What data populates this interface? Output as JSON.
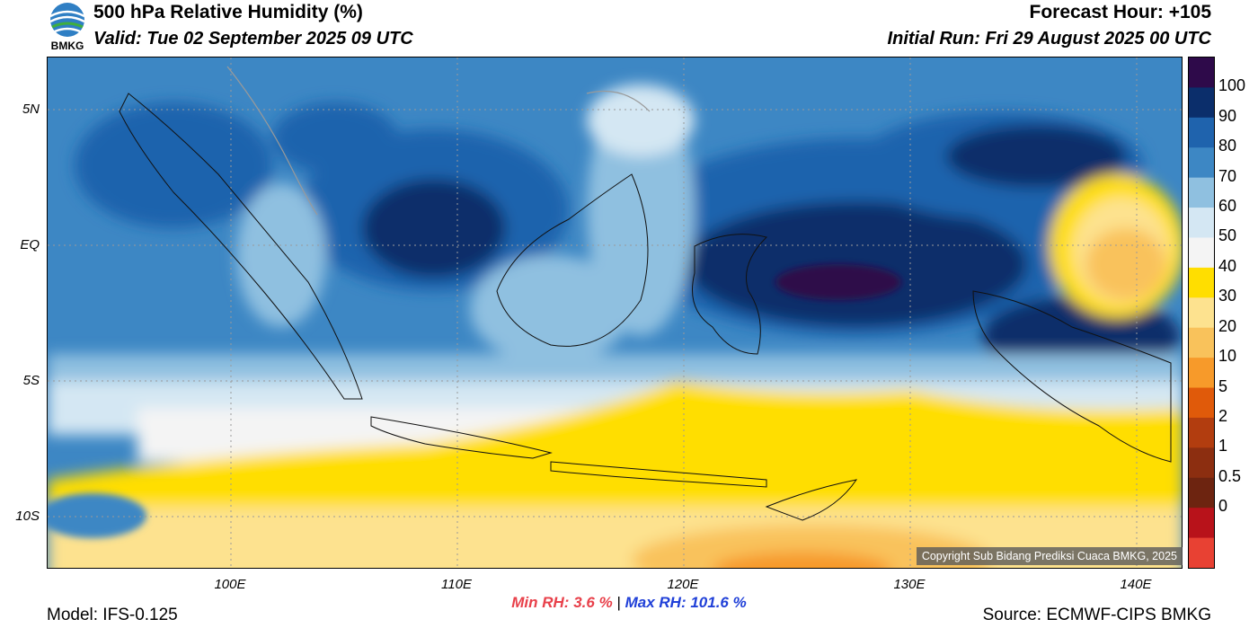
{
  "header": {
    "title": "500 hPa Relative Humidity (%)",
    "valid": "Valid: Tue 02 September 2025 09 UTC",
    "forecast_hour": "Forecast Hour: +105",
    "initial_run": "Initial Run: Fri 29 August 2025 00 UTC"
  },
  "logo": {
    "text": "BMKG",
    "icon": "bmkg-logo-icon"
  },
  "axes": {
    "lat_labels": [
      "5N",
      "EQ",
      "5S",
      "10S"
    ],
    "lon_labels": [
      "100E",
      "110E",
      "120E",
      "130E",
      "140E"
    ]
  },
  "colorbar": {
    "labels": [
      "100",
      "90",
      "80",
      "70",
      "60",
      "50",
      "40",
      "30",
      "20",
      "10",
      "5",
      "2",
      "1",
      "0.5",
      "0"
    ],
    "colors": [
      "#2e0a4a",
      "#0b2e6b",
      "#1f63ad",
      "#3d87c4",
      "#8fc0e0",
      "#d4e7f3",
      "#f4f4f4",
      "#ffde00",
      "#fde28f",
      "#f9c25b",
      "#f79a2a",
      "#e05a0a",
      "#b23d0f",
      "#8c2e10",
      "#6d2410",
      "#b8121a",
      "#e84133"
    ]
  },
  "stats": {
    "min_label": "Min RH:",
    "min_value": "3.6 %",
    "separator": "|",
    "max_label": "Max RH:",
    "max_value": "101.6 %"
  },
  "footer": {
    "model": "Model: IFS-0.125",
    "source": "Source: ECMWF-CIPS BMKG",
    "copyright": "Copyright Sub Bidang Prediksi Cuaca BMKG, 2025"
  }
}
